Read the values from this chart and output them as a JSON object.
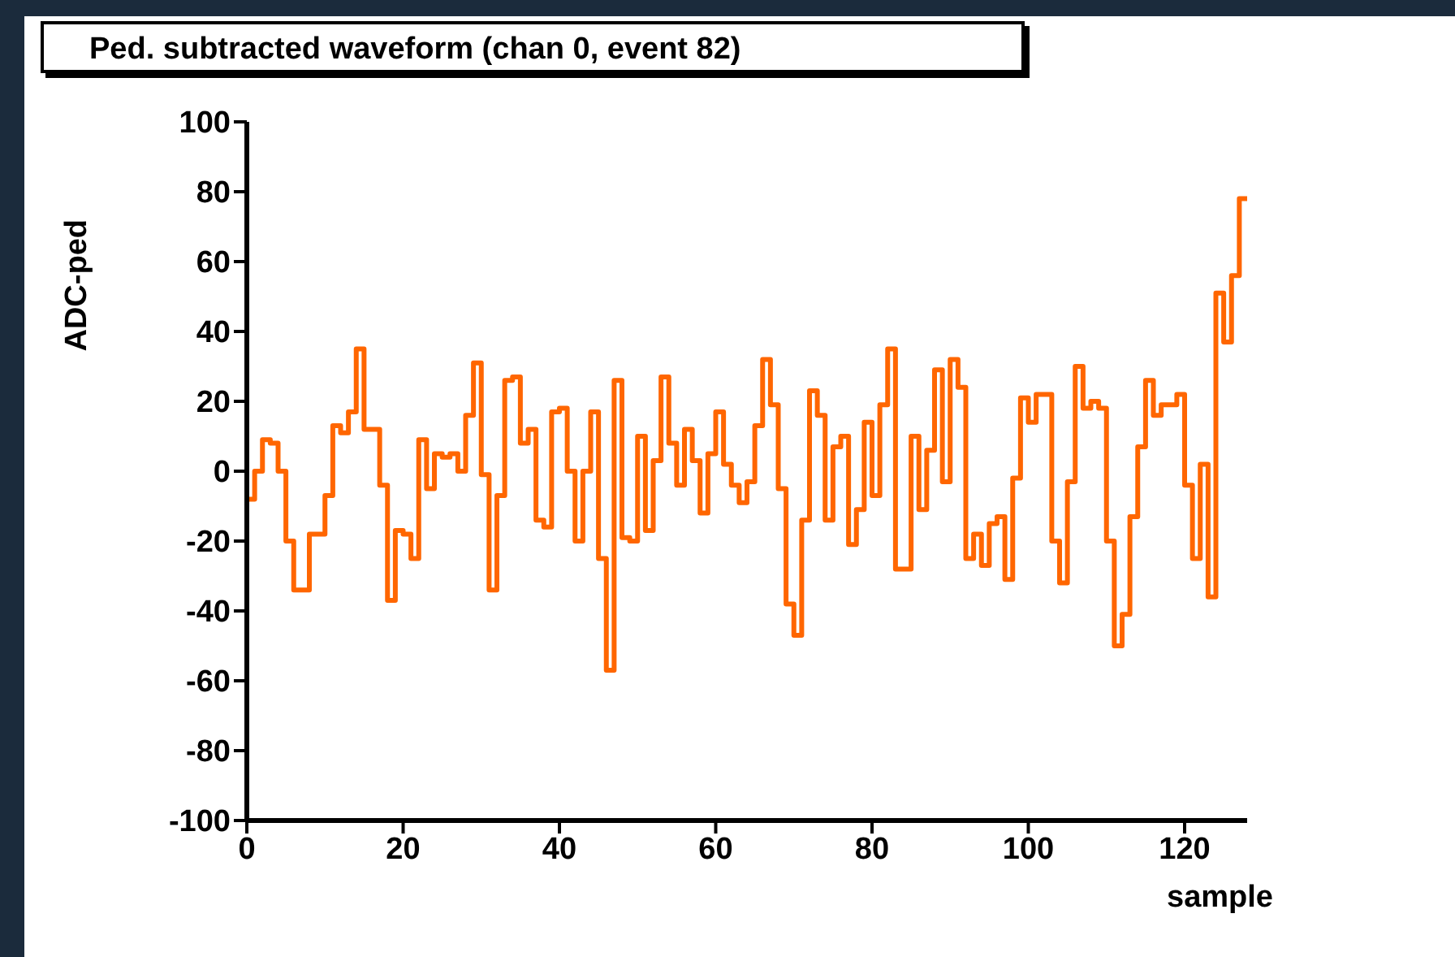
{
  "chart_data": {
    "type": "histogram",
    "title": "Ped. subtracted waveform (chan 0, event 82)",
    "xlabel": "sample",
    "ylabel": "ADC-ped",
    "bins": [
      0,
      1,
      2,
      3,
      4,
      5,
      6,
      7,
      8,
      9,
      10,
      11,
      12,
      13,
      14,
      15,
      16,
      17,
      18,
      19,
      20,
      21,
      22,
      23,
      24,
      25,
      26,
      27,
      28,
      29,
      30,
      31,
      32,
      33,
      34,
      35,
      36,
      37,
      38,
      39,
      40,
      41,
      42,
      43,
      44,
      45,
      46,
      47,
      48,
      49,
      50,
      51,
      52,
      53,
      54,
      55,
      56,
      57,
      58,
      59,
      60,
      61,
      62,
      63,
      64,
      65,
      66,
      67,
      68,
      69,
      70,
      71,
      72,
      73,
      74,
      75,
      76,
      77,
      78,
      79,
      80,
      81,
      82,
      83,
      84,
      85,
      86,
      87,
      88,
      89,
      90,
      91,
      92,
      93,
      94,
      95,
      96,
      97,
      98,
      99,
      100,
      101,
      102,
      103,
      104,
      105,
      106,
      107,
      108,
      109,
      110,
      111,
      112,
      113,
      114,
      115,
      116,
      117,
      118,
      119,
      120,
      121,
      122,
      123,
      124,
      125,
      126,
      127,
      128
    ],
    "values": [
      -8,
      0,
      9,
      8,
      0,
      -20,
      -34,
      -34,
      -18,
      -18,
      -7,
      13,
      11,
      17,
      35,
      12,
      12,
      -4,
      -37,
      -17,
      -18,
      -25,
      9,
      -5,
      5,
      4,
      5,
      0,
      16,
      31,
      -1,
      -34,
      -7,
      26,
      27,
      8,
      12,
      -14,
      -16,
      17,
      18,
      0,
      -20,
      0,
      17,
      -25,
      -57,
      26,
      -19,
      -20,
      10,
      -17,
      3,
      27,
      8,
      -4,
      12,
      3,
      -12,
      5,
      17,
      2,
      -4,
      -9,
      -3,
      13,
      32,
      19,
      -5,
      -38,
      -47,
      -14,
      23,
      16,
      -14,
      7,
      10,
      -21,
      -11,
      14,
      -7,
      19,
      35,
      -28,
      -28,
      10,
      -11,
      6,
      29,
      -3,
      32,
      24,
      -25,
      -18,
      -27,
      -15,
      -13,
      -31,
      -2,
      21,
      14,
      22,
      22,
      -20,
      -32,
      -3,
      30,
      18,
      20,
      18,
      -20,
      -50,
      -41,
      -13,
      7,
      26,
      16,
      19,
      19,
      22,
      -4,
      -25,
      2,
      -36,
      51,
      37,
      56,
      78
    ],
    "color": "#ff6600",
    "xlim": [
      0,
      128
    ],
    "xticks": [
      0,
      20,
      40,
      60,
      80,
      100,
      120
    ],
    "ylim": [
      -100,
      100
    ],
    "yticks": [
      -100,
      -80,
      -60,
      -40,
      -20,
      0,
      20,
      40,
      60,
      80,
      100
    ],
    "grid": false,
    "legend": false
  }
}
